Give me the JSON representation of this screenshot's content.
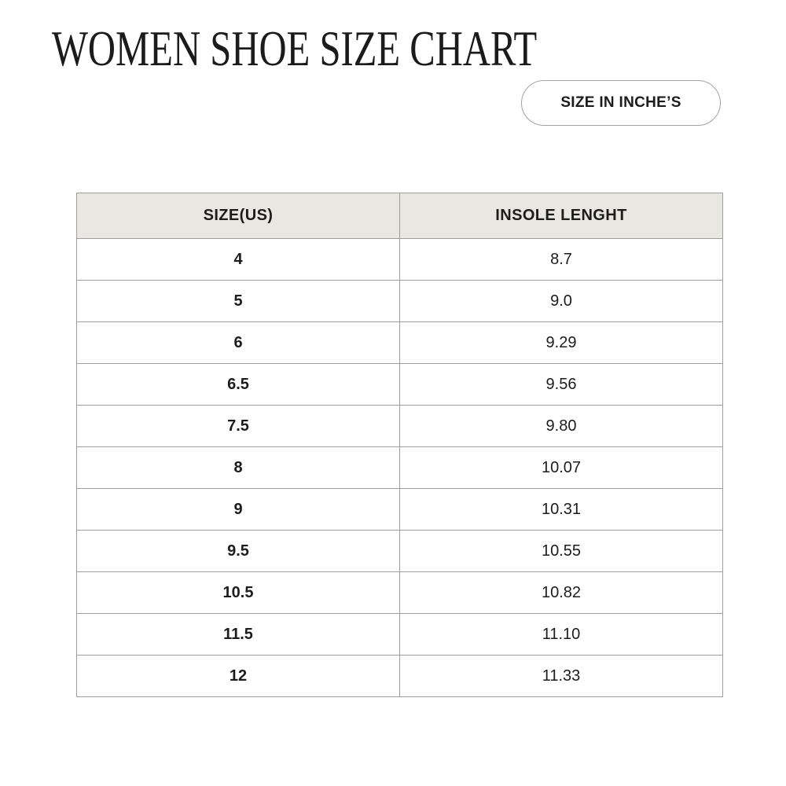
{
  "header": {
    "title": "WOMEN SHOE SIZE CHART",
    "badge_label": "SIZE IN INCHE’S"
  },
  "table": {
    "headers": [
      "SIZE(US)",
      "INSOLE LENGHT"
    ],
    "rows": [
      [
        "4",
        "8.7"
      ],
      [
        "5",
        "9.0"
      ],
      [
        "6",
        "9.29"
      ],
      [
        "6.5",
        "9.56"
      ],
      [
        "7.5",
        "9.80"
      ],
      [
        "8",
        "10.07"
      ],
      [
        "9",
        "10.31"
      ],
      [
        "9.5",
        "10.55"
      ],
      [
        "10.5",
        "10.82"
      ],
      [
        "11.5",
        "11.10"
      ],
      [
        "12",
        "11.33"
      ]
    ]
  },
  "chart_data": {
    "type": "table",
    "title": "WOMEN SHOE SIZE CHART",
    "unit_badge": "SIZE IN INCHE’S",
    "columns": [
      "SIZE(US)",
      "INSOLE LENGHT"
    ],
    "size_us": [
      4,
      5,
      6,
      6.5,
      7.5,
      8,
      9,
      9.5,
      10.5,
      11.5,
      12
    ],
    "insole_length_inches": [
      8.7,
      9.0,
      9.29,
      9.56,
      9.8,
      10.07,
      10.31,
      10.55,
      10.82,
      11.1,
      11.33
    ]
  },
  "colors": {
    "background": "#ffffff",
    "text": "#1c1c1c",
    "table_border": "#9e9e9e",
    "header_row_bg": "#e9e7e1",
    "badge_border": "#a3a3a3"
  }
}
